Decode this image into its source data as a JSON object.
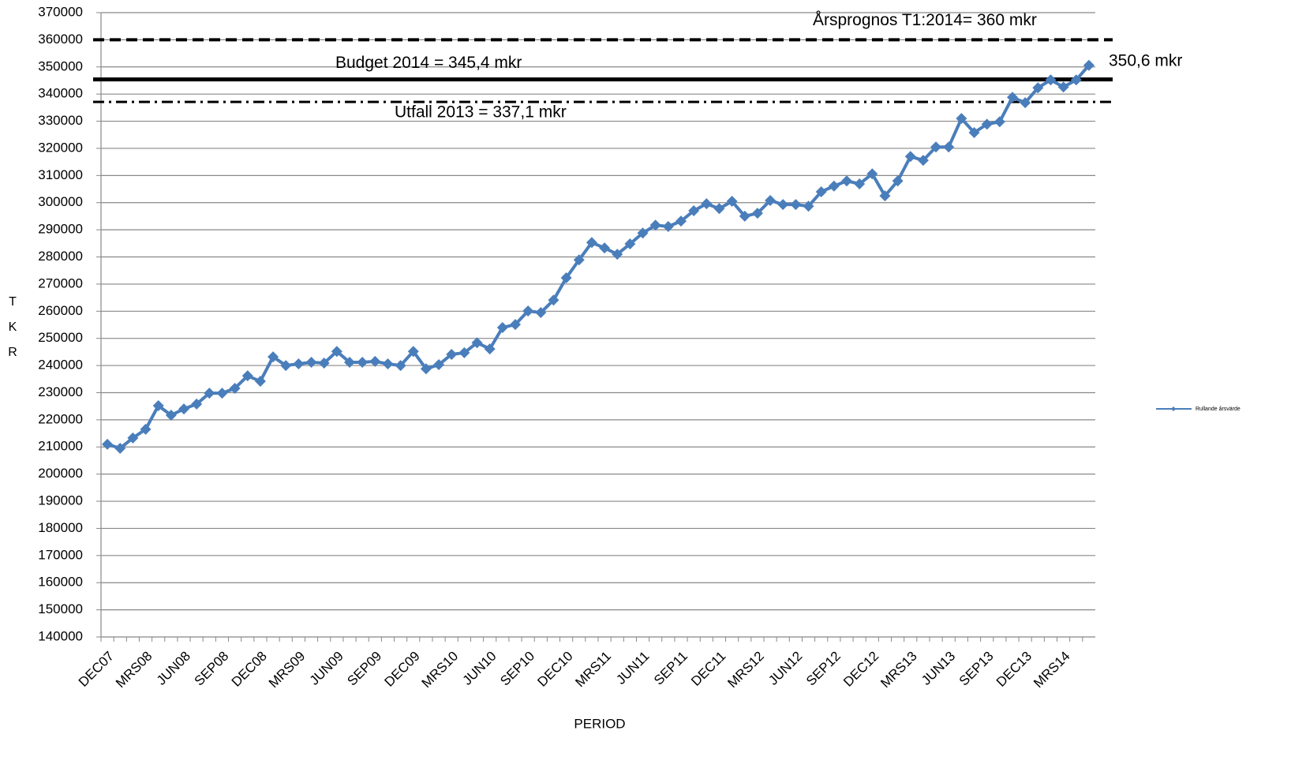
{
  "chart_data": {
    "type": "line",
    "y_label": "TKR",
    "x_label": "PERIOD",
    "categories": [
      "DEC07",
      null,
      null,
      "MRS08",
      null,
      null,
      "JUN08",
      null,
      null,
      "SEP08",
      null,
      null,
      "DEC08",
      null,
      null,
      "MRS09",
      null,
      null,
      "JUN09",
      null,
      null,
      "SEP09",
      null,
      null,
      "DEC09",
      null,
      null,
      "MRS10",
      null,
      null,
      "JUN10",
      null,
      null,
      "SEP10",
      null,
      null,
      "DEC10",
      null,
      null,
      "MRS11",
      null,
      null,
      "JUN11",
      null,
      null,
      "SEP11",
      null,
      null,
      "DEC11",
      null,
      null,
      "MRS12",
      null,
      null,
      "JUN12",
      null,
      null,
      "SEP12",
      null,
      null,
      "DEC12",
      null,
      null,
      "MRS13",
      null,
      null,
      "JUN13",
      null,
      null,
      "SEP13",
      null,
      null,
      "DEC13",
      null,
      null,
      "MRS14",
      null,
      null
    ],
    "series": [
      {
        "name": "Rullande årsvärde",
        "color": "#4a7ebb",
        "values": [
          211000,
          209500,
          213300,
          216500,
          225200,
          221700,
          224000,
          225800,
          229800,
          229800,
          231600,
          236200,
          234200,
          243200,
          240000,
          240600,
          241200,
          240900,
          245200,
          241200,
          241200,
          241500,
          240600,
          240000,
          245200,
          238800,
          240300,
          244100,
          244700,
          248400,
          246100,
          254000,
          255100,
          260100,
          259500,
          264100,
          272300,
          278900,
          285300,
          283300,
          281000,
          284800,
          288800,
          291700,
          291200,
          293200,
          297000,
          299600,
          297800,
          300500,
          295000,
          296100,
          300800,
          299300,
          299300,
          298700,
          304000,
          306100,
          308000,
          306900,
          310600,
          302500,
          308000,
          317000,
          315600,
          320500,
          320500,
          331000,
          325800,
          328900,
          329800,
          338800,
          336800,
          342300,
          345200,
          342600,
          345200,
          350600
        ]
      }
    ],
    "ylim": [
      140000,
      370000
    ],
    "yticks": [
      140000,
      150000,
      160000,
      170000,
      180000,
      190000,
      200000,
      210000,
      220000,
      230000,
      240000,
      250000,
      260000,
      270000,
      280000,
      290000,
      300000,
      310000,
      320000,
      330000,
      340000,
      350000,
      360000,
      370000
    ],
    "grid": true,
    "legend": "right",
    "reference_lines": [
      {
        "value": 360000,
        "label": "Årsprognos T1:2014= 360 mkr",
        "style": "dashed"
      },
      {
        "value": 345400,
        "label": "Budget 2014 = 345,4 mkr",
        "style": "solid"
      },
      {
        "value": 337100,
        "label": "Utfall 2013 = 337,1 mkr",
        "style": "dashdot"
      }
    ],
    "end_label": "350,6 mkr"
  }
}
